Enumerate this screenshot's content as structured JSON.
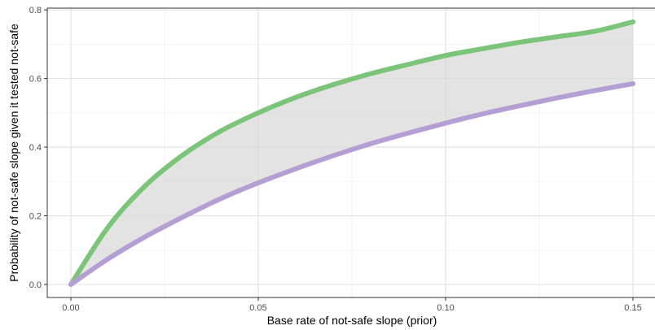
{
  "chart_data": {
    "type": "area",
    "xlabel": "Base rate of not-safe slope (prior)",
    "ylabel": "Probability of not-safe slope given it tested not-safe",
    "xlim": [
      -0.0063,
      0.1563
    ],
    "ylim": [
      -0.038,
      0.805
    ],
    "x_ticks": [
      0.0,
      0.05,
      0.1,
      0.15
    ],
    "x_tick_labels": [
      "0.00",
      "0.05",
      "0.10",
      "0.15"
    ],
    "y_ticks": [
      0.0,
      0.2,
      0.4,
      0.6,
      0.8
    ],
    "y_tick_labels": [
      "0.0",
      "0.2",
      "0.4",
      "0.6",
      "0.8"
    ],
    "grid": true,
    "background": "gray-panel",
    "series": [
      {
        "color": "#7bc47a",
        "x": [
          0.0,
          0.01,
          0.02,
          0.03,
          0.04,
          0.05,
          0.06,
          0.07,
          0.08,
          0.09,
          0.1,
          0.11,
          0.12,
          0.13,
          0.14,
          0.15
        ],
        "values": [
          0.0,
          0.168,
          0.289,
          0.378,
          0.447,
          0.5,
          0.545,
          0.582,
          0.614,
          0.641,
          0.667,
          0.687,
          0.706,
          0.722,
          0.738,
          0.765
        ]
      },
      {
        "color": "#b59ed3",
        "x": [
          0.0,
          0.01,
          0.02,
          0.03,
          0.04,
          0.05,
          0.06,
          0.07,
          0.08,
          0.09,
          0.1,
          0.11,
          0.12,
          0.13,
          0.14,
          0.15
        ],
        "values": [
          0.0,
          0.075,
          0.14,
          0.197,
          0.25,
          0.296,
          0.337,
          0.375,
          0.41,
          0.441,
          0.47,
          0.497,
          0.521,
          0.544,
          0.565,
          0.585
        ]
      }
    ],
    "ribbon": {
      "color": "#d9d9d9",
      "between_series": [
        0,
        1
      ]
    }
  }
}
